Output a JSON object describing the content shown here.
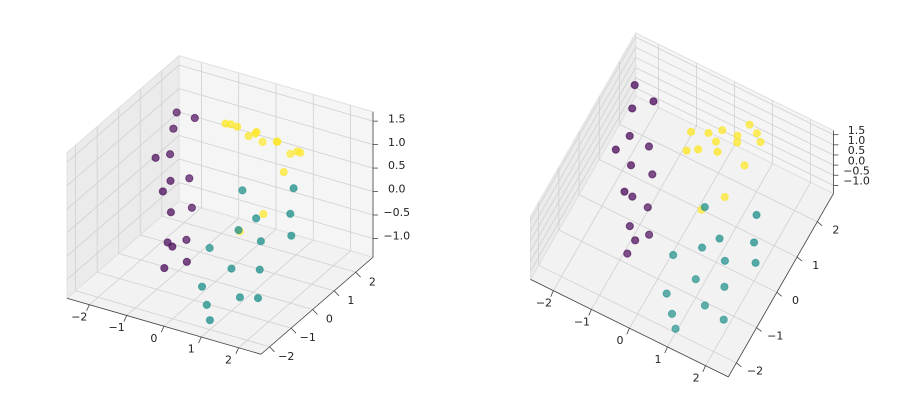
{
  "chart_data": [
    {
      "type": "scatter3d",
      "xlim": [
        -2.6,
        2.6
      ],
      "ylim": [
        -2.4,
        2.8
      ],
      "zlim": [
        -1.4,
        1.7
      ],
      "xticks": [
        {
          "value": -2,
          "label": "−2"
        },
        {
          "value": -1,
          "label": "−1"
        },
        0,
        1,
        2
      ],
      "yticks": [
        {
          "value": -2,
          "label": "−2"
        },
        {
          "value": -1,
          "label": "−1"
        },
        0,
        1,
        2
      ],
      "zticks": [
        {
          "value": -1,
          "label": "−1.0"
        },
        {
          "value": -0.5,
          "label": "−0.5"
        },
        {
          "value": 0,
          "label": "0.0"
        },
        0.5,
        {
          "value": 1,
          "label": "1.0"
        },
        1.5
      ],
      "grid": true,
      "series": [
        {
          "color": "#440154",
          "x": [
            -2.0,
            -1.8,
            -1.5,
            -1.2,
            -1.0,
            -0.8,
            -1.6,
            -2.2,
            -1.4,
            -1.1,
            -0.9,
            -0.6,
            -1.9,
            -1.3,
            -0.7
          ],
          "y": [
            1.5,
            1.0,
            0.5,
            0.0,
            -0.5,
            -1.0,
            1.8,
            2.0,
            1.2,
            0.8,
            0.2,
            -0.3,
            0.5,
            -0.2,
            -0.8
          ],
          "z": [
            0.8,
            0.5,
            0.2,
            -0.2,
            -0.6,
            -0.9,
            1.0,
            0.9,
            0.0,
            -0.4,
            -0.8,
            -1.0,
            0.6,
            0.3,
            -0.5
          ]
        },
        {
          "color": "#21918c",
          "x": [
            0.5,
            1.0,
            1.5,
            2.0,
            0.8,
            1.2,
            1.8,
            0.3,
            1.4,
            2.2,
            0.6,
            1.0,
            1.7,
            0.9,
            2.0
          ],
          "y": [
            -1.5,
            -1.0,
            -0.5,
            0.0,
            -1.8,
            -0.2,
            0.5,
            -0.8,
            -1.3,
            -0.3,
            0.2,
            -2.0,
            -0.9,
            -0.5,
            -1.5
          ],
          "z": [
            -0.8,
            -0.5,
            0.0,
            0.5,
            -1.0,
            0.3,
            0.8,
            -0.3,
            -0.9,
            0.2,
            0.6,
            -1.2,
            -0.4,
            0.1,
            -0.7
          ]
        },
        {
          "color": "#fde725",
          "x": [
            0.0,
            0.2,
            0.5,
            0.8,
            -0.2,
            0.4,
            0.6,
            1.0,
            -0.4,
            0.1,
            0.3,
            0.7,
            0.9,
            -0.1,
            0.5
          ],
          "y": [
            1.0,
            1.5,
            2.0,
            2.4,
            0.8,
            1.2,
            1.8,
            2.2,
            1.4,
            2.0,
            0.6,
            1.0,
            1.6,
            1.7,
            2.6
          ],
          "z": [
            1.5,
            1.2,
            0.9,
            0.6,
            1.6,
            1.4,
            1.0,
            0.7,
            1.3,
            0.8,
            -0.5,
            -0.2,
            0.5,
            1.0,
            0.4
          ]
        }
      ]
    },
    {
      "type": "scatter3d",
      "xlim": [
        -2.6,
        2.6
      ],
      "ylim": [
        -2.4,
        2.8
      ],
      "zlim": [
        -1.4,
        1.7
      ],
      "xticks": [
        {
          "value": -2,
          "label": "−2"
        },
        {
          "value": -1,
          "label": "−1"
        },
        0,
        1,
        2
      ],
      "yticks": [
        {
          "value": -2,
          "label": "−2"
        },
        {
          "value": -1,
          "label": "−1"
        },
        0,
        1,
        2
      ],
      "zticks": [
        {
          "value": -1,
          "label": "−1.0"
        },
        {
          "value": -0.5,
          "label": "−0.5"
        },
        {
          "value": 0,
          "label": "0.0"
        },
        0.5,
        {
          "value": 1,
          "label": "1.0"
        },
        1.5
      ],
      "grid": true,
      "series": [
        {
          "color": "#440154",
          "x": [
            -2.0,
            -1.8,
            -1.5,
            -1.2,
            -1.0,
            -0.8,
            -1.6,
            -2.2,
            -1.4,
            -1.1,
            -0.9,
            -0.6,
            -1.9,
            -1.3,
            -0.7
          ],
          "y": [
            1.5,
            1.0,
            0.5,
            0.0,
            -0.5,
            -1.0,
            1.8,
            2.0,
            1.2,
            0.8,
            0.2,
            -0.3,
            0.5,
            -0.2,
            -0.8
          ],
          "z": [
            0.8,
            0.5,
            0.2,
            -0.2,
            -0.6,
            -0.9,
            1.0,
            0.9,
            0.0,
            -0.4,
            -0.8,
            -1.0,
            0.6,
            0.3,
            -0.5
          ]
        },
        {
          "color": "#21918c",
          "x": [
            0.5,
            1.0,
            1.5,
            2.0,
            0.8,
            1.2,
            1.8,
            0.3,
            1.4,
            2.2,
            0.6,
            1.0,
            1.7,
            0.9,
            2.0
          ],
          "y": [
            -1.5,
            -1.0,
            -0.5,
            0.0,
            -1.8,
            -0.2,
            0.5,
            -0.8,
            -1.3,
            -0.3,
            0.2,
            -2.0,
            -0.9,
            -0.5,
            -1.5
          ],
          "z": [
            -0.8,
            -0.5,
            0.0,
            0.5,
            -1.0,
            0.3,
            0.8,
            -0.3,
            -0.9,
            0.2,
            0.6,
            -1.2,
            -0.4,
            0.1,
            -0.7
          ]
        },
        {
          "color": "#fde725",
          "x": [
            0.0,
            0.2,
            0.5,
            0.8,
            -0.2,
            0.4,
            0.6,
            1.0,
            -0.4,
            0.1,
            0.3,
            0.7,
            0.9,
            -0.1,
            0.5
          ],
          "y": [
            1.0,
            1.5,
            2.0,
            2.4,
            0.8,
            1.2,
            1.8,
            2.2,
            1.4,
            2.0,
            0.6,
            1.0,
            1.6,
            1.7,
            2.6
          ],
          "z": [
            1.5,
            1.2,
            0.9,
            0.6,
            1.6,
            1.4,
            1.0,
            0.7,
            1.3,
            0.8,
            -0.5,
            -0.2,
            0.5,
            1.0,
            0.4
          ]
        }
      ]
    }
  ]
}
